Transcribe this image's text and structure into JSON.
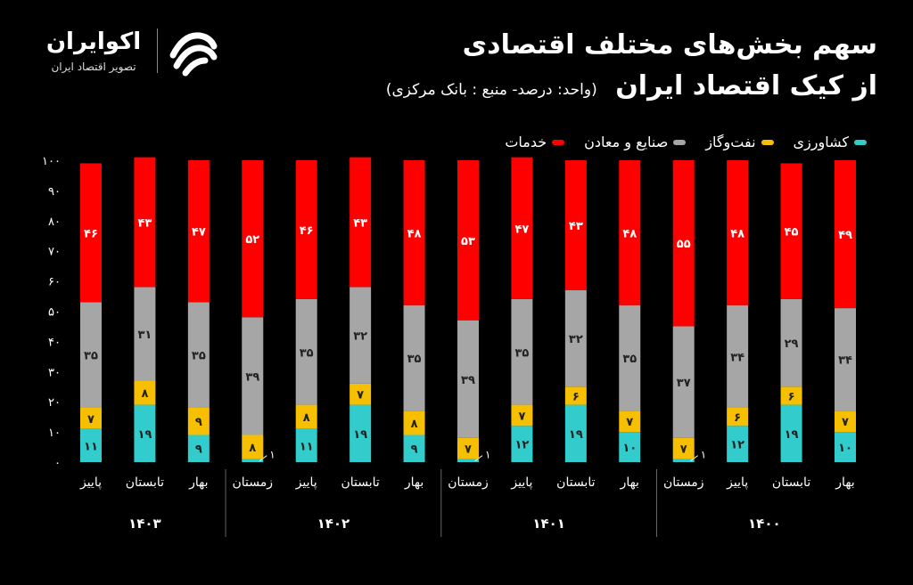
{
  "logo": {
    "name": "اکوایران",
    "tagline": "تصویر اقتصاد ایران",
    "icon": "ecoiran-wave-logo"
  },
  "header": {
    "title_line1": "سهم بخش‌های مختلف اقتصادی",
    "title_line2": "از کیک اقتصاد ایران",
    "subtitle": "(واحد: درصد- منبع : بانک مرکزی)"
  },
  "colors": {
    "services": "#ff0000",
    "industry": "#a6a6a6",
    "oil": "#f6bf00",
    "agriculture": "#33cccc",
    "background": "#000000"
  },
  "legend": [
    {
      "key": "agriculture",
      "label": "کشاورزی"
    },
    {
      "key": "oil",
      "label": "نفت‌وگاز"
    },
    {
      "key": "industry",
      "label": "صنایع و معادن"
    },
    {
      "key": "services",
      "label": "خدمات"
    }
  ],
  "chart_data": {
    "type": "bar",
    "stacked": true,
    "direction": "rtl",
    "ylim": [
      0,
      100
    ],
    "yticks": [
      "۰",
      "۱۰",
      "۲۰",
      "۳۰",
      "۴۰",
      "۵۰",
      "۶۰",
      "۷۰",
      "۸۰",
      "۹۰",
      "۱۰۰"
    ],
    "years": [
      "۱۴۰۰",
      "۱۴۰۱",
      "۱۴۰۲",
      "۱۴۰۳"
    ],
    "categories": [
      {
        "season": "بهار",
        "year": 0
      },
      {
        "season": "تابستان",
        "year": 0
      },
      {
        "season": "پاییز",
        "year": 0
      },
      {
        "season": "زمستان",
        "year": 0
      },
      {
        "season": "بهار",
        "year": 1
      },
      {
        "season": "تابستان",
        "year": 1
      },
      {
        "season": "پاییز",
        "year": 1
      },
      {
        "season": "زمستان",
        "year": 1
      },
      {
        "season": "بهار",
        "year": 2
      },
      {
        "season": "تابستان",
        "year": 2
      },
      {
        "season": "پاییز",
        "year": 2
      },
      {
        "season": "زمستان",
        "year": 2
      },
      {
        "season": "بهار",
        "year": 3
      },
      {
        "season": "تابستان",
        "year": 3
      },
      {
        "season": "پاییز",
        "year": 3
      }
    ],
    "series": [
      {
        "key": "agriculture",
        "name": "کشاورزی",
        "values": [
          10,
          19,
          12,
          1,
          10,
          19,
          12,
          1,
          9,
          19,
          11,
          1,
          9,
          19,
          11
        ]
      },
      {
        "key": "oil",
        "name": "نفت‌وگاز",
        "values": [
          7,
          6,
          6,
          7,
          7,
          6,
          7,
          7,
          8,
          7,
          8,
          8,
          9,
          8,
          7
        ]
      },
      {
        "key": "industry",
        "name": "صنایع و معادن",
        "values": [
          34,
          29,
          34,
          37,
          35,
          32,
          35,
          39,
          35,
          32,
          35,
          39,
          35,
          31,
          35
        ]
      },
      {
        "key": "services",
        "name": "خدمات",
        "values": [
          49,
          45,
          48,
          55,
          48,
          43,
          47,
          53,
          48,
          43,
          46,
          52,
          47,
          43,
          46
        ]
      }
    ],
    "data_labels": {
      "agriculture": [
        "۱۰",
        "۱۹",
        "۱۲",
        "۱",
        "۱۰",
        "۱۹",
        "۱۲",
        "۱",
        "۹",
        "۱۹",
        "۱۱",
        "۱",
        "۹",
        "۱۹",
        "۱۱"
      ],
      "oil": [
        "۷",
        "۶",
        "۶",
        "۷",
        "۷",
        "۶",
        "۷",
        "۷",
        "۸",
        "۷",
        "۸",
        "۸",
        "۹",
        "۸",
        "۷"
      ],
      "industry": [
        "۳۴",
        "۲۹",
        "۳۴",
        "۳۷",
        "۳۵",
        "۳۲",
        "۳۵",
        "۳۹",
        "۳۵",
        "۳۲",
        "۳۵",
        "۳۹",
        "۳۵",
        "۳۱",
        "۳۵"
      ],
      "services": [
        "۴۹",
        "۴۵",
        "۴۸",
        "۵۵",
        "۴۸",
        "۴۳",
        "۴۷",
        "۵۳",
        "۴۸",
        "۴۳",
        "۴۶",
        "۵۲",
        "۴۷",
        "۴۳",
        "۴۶"
      ]
    }
  }
}
